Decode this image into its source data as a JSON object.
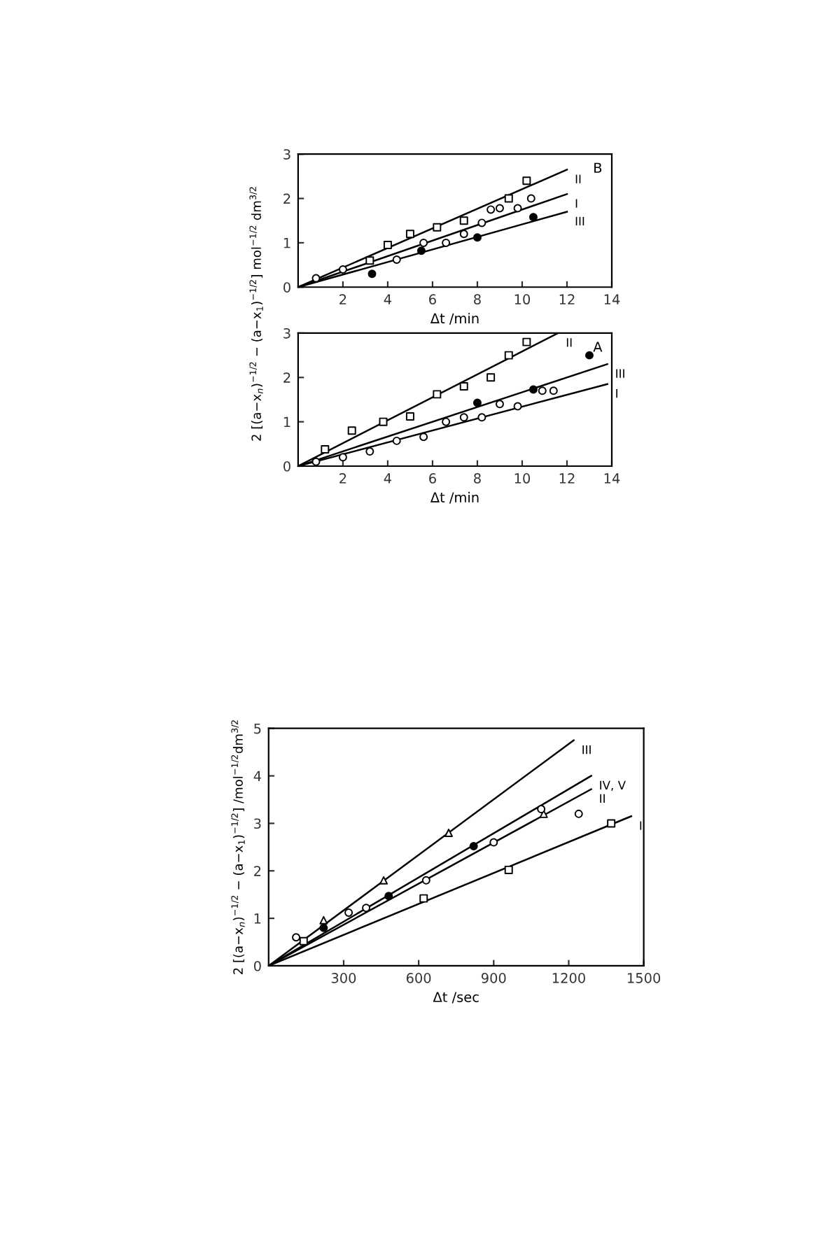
{
  "chart_data": [
    {
      "type": "scatter",
      "xlabel": "Δt /min",
      "ylabel": "2 [(a−x$_{n}$)$^{−1/2}$ − (a−x$_{1}$)$^{−1/2}$] mol$^{−1/2}$ dm$^{3/2}$",
      "xlim": [
        0,
        14
      ],
      "ylim": [
        0,
        3
      ],
      "xticks": [
        2,
        4,
        6,
        8,
        10,
        12,
        14
      ],
      "yticks": [
        0,
        1,
        2,
        3
      ],
      "grid": false,
      "legend": false,
      "annotations": [
        "B",
        {
          "text": "II",
          "x": 12,
          "y": 2.65
        },
        {
          "text": "I",
          "x": 12,
          "y": 2.1
        },
        {
          "text": "III",
          "x": 12,
          "y": 1.7
        }
      ],
      "series": [
        {
          "type": "line",
          "color": "#000000",
          "x": [
            0,
            12
          ],
          "values": [
            0,
            2.65
          ]
        },
        {
          "type": "line",
          "color": "#000000",
          "x": [
            0,
            12
          ],
          "values": [
            0,
            2.1
          ]
        },
        {
          "type": "line",
          "color": "#000000",
          "x": [
            0,
            12
          ],
          "values": [
            0,
            1.7
          ]
        },
        {
          "marker": "square",
          "color": "#ffffff",
          "x": [
            3.2,
            4,
            5,
            6.2,
            7.4,
            9.4,
            10.2
          ],
          "values": [
            0.6,
            0.95,
            1.2,
            1.35,
            1.5,
            2.0,
            2.4
          ]
        },
        {
          "marker": "circle",
          "color": "#ffffff",
          "x": [
            0.8,
            2,
            4.4,
            5.6,
            6.6,
            7.4,
            8.2,
            8.6,
            9,
            9.8,
            10.4
          ],
          "values": [
            0.2,
            0.4,
            0.62,
            1.0,
            1.0,
            1.2,
            1.45,
            1.75,
            1.78,
            1.78,
            2.0
          ]
        },
        {
          "marker": "circle",
          "color": "#000000",
          "x": [
            3.3,
            5.5,
            8,
            10.5
          ],
          "values": [
            0.3,
            0.82,
            1.12,
            1.58
          ]
        }
      ]
    },
    {
      "type": "scatter",
      "xlabel": "Δt /min",
      "xlim": [
        0,
        14
      ],
      "ylim": [
        0,
        3
      ],
      "xticks": [
        2,
        4,
        6,
        8,
        10,
        12,
        14
      ],
      "yticks": [
        0,
        1,
        2,
        3
      ],
      "grid": false,
      "legend": false,
      "annotations": [
        "A",
        {
          "text": "II",
          "x": 11.6,
          "y": 3.0
        },
        {
          "text": "III",
          "x": 13.8,
          "y": 2.3
        },
        {
          "text": "I",
          "x": 13.8,
          "y": 1.85
        }
      ],
      "series": [
        {
          "type": "line",
          "color": "#000000",
          "x": [
            0,
            11.6
          ],
          "values": [
            0,
            3.0
          ]
        },
        {
          "type": "line",
          "color": "#000000",
          "x": [
            0,
            13.8
          ],
          "values": [
            0,
            2.3
          ]
        },
        {
          "type": "line",
          "color": "#000000",
          "x": [
            0,
            13.8
          ],
          "values": [
            0,
            1.85
          ]
        },
        {
          "marker": "square",
          "color": "#ffffff",
          "x": [
            1.2,
            2.4,
            3.8,
            5,
            6.2,
            7.4,
            8.6,
            9.4,
            10.2
          ],
          "values": [
            0.38,
            0.8,
            1.0,
            1.12,
            1.62,
            1.8,
            2.0,
            2.5,
            2.8
          ]
        },
        {
          "marker": "circle",
          "color": "#ffffff",
          "x": [
            0.8,
            2,
            3.2,
            4.4,
            5.6,
            6.6,
            7.4,
            8.2,
            9,
            9.8,
            10.9,
            11.4
          ],
          "values": [
            0.1,
            0.2,
            0.33,
            0.57,
            0.66,
            1.0,
            1.1,
            1.1,
            1.4,
            1.35,
            1.7,
            1.7
          ]
        },
        {
          "marker": "circle",
          "color": "#000000",
          "x": [
            8,
            10.5,
            13
          ],
          "values": [
            1.43,
            1.73,
            2.5
          ]
        }
      ]
    },
    {
      "type": "scatter",
      "xlabel": "Δt /sec",
      "ylabel": "2 [(a−x$_{n}$)$^{−1/2}$ − (a−x$_{1}$)$^{−1/2}$] /mol$^{−1/2}$dm$^{3/2}$",
      "xlim": [
        0,
        1500
      ],
      "ylim": [
        0,
        5
      ],
      "xticks": [
        300,
        600,
        900,
        1200,
        1500
      ],
      "yticks": [
        0,
        1,
        2,
        3,
        4,
        5
      ],
      "grid": false,
      "legend": false,
      "annotations": [
        {
          "text": "III",
          "x": 1220,
          "y": 4.75
        },
        {
          "text": "IV, V",
          "x": 1290,
          "y": 4.0
        },
        {
          "text": "II",
          "x": 1290,
          "y": 3.72
        },
        {
          "text": "I",
          "x": 1450,
          "y": 3.15
        }
      ],
      "series": [
        {
          "type": "line",
          "color": "#000000",
          "x": [
            0,
            1220
          ],
          "values": [
            0,
            4.75
          ]
        },
        {
          "type": "line",
          "color": "#000000",
          "x": [
            0,
            1290
          ],
          "values": [
            0,
            4.0
          ]
        },
        {
          "type": "line",
          "color": "#000000",
          "x": [
            0,
            1290
          ],
          "values": [
            0,
            3.72
          ]
        },
        {
          "type": "line",
          "color": "#000000",
          "x": [
            0,
            1450
          ],
          "values": [
            0,
            3.15
          ]
        },
        {
          "marker": "triangle",
          "color": "#ffffff",
          "x": [
            220,
            460,
            720,
            1100
          ],
          "values": [
            0.96,
            1.8,
            2.8,
            3.2
          ]
        },
        {
          "marker": "circle",
          "color": "#000000",
          "x": [
            220,
            480,
            820
          ],
          "values": [
            0.8,
            1.47,
            2.52
          ]
        },
        {
          "marker": "circle",
          "color": "#ffffff",
          "x": [
            110,
            320,
            390,
            630,
            900,
            1090,
            1240
          ],
          "values": [
            0.6,
            1.12,
            1.22,
            1.8,
            2.6,
            3.3,
            3.2
          ]
        },
        {
          "marker": "square",
          "color": "#ffffff",
          "x": [
            140,
            620,
            960,
            1370
          ],
          "values": [
            0.52,
            1.42,
            2.02,
            3.0
          ]
        }
      ]
    }
  ]
}
